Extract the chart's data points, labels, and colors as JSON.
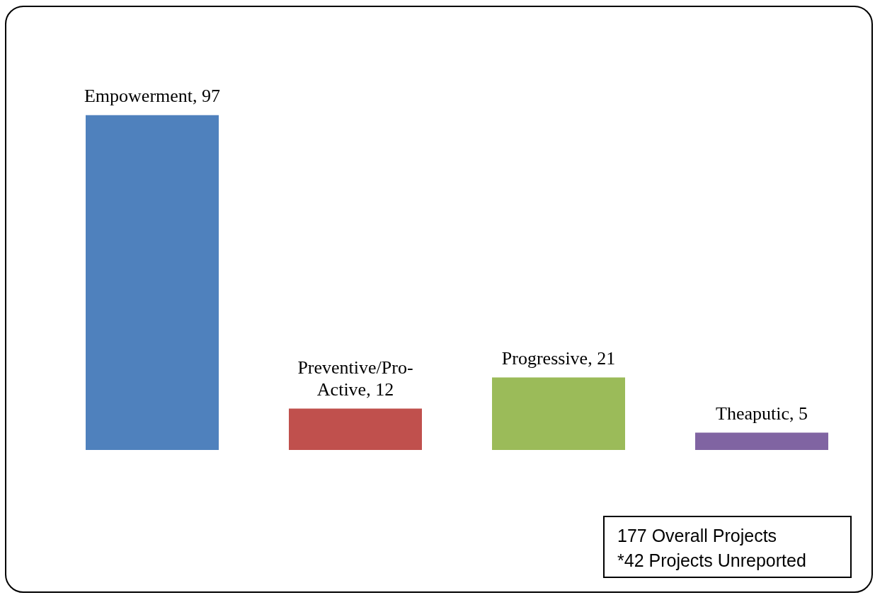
{
  "chart_data": {
    "type": "bar",
    "categories": [
      null,
      null,
      null,
      null
    ],
    "values": [
      97,
      12,
      21,
      5
    ],
    "value_labels": [
      "Empowerment, 97",
      "Preventive/Pro-Active, 12",
      "Progressive, 21",
      "Theaputic, 5"
    ],
    "colors": [
      "#4f81bd",
      "#c0504d",
      "#9bbb59",
      "#8064a2"
    ],
    "tick_labels": false,
    "annotations": [
      "177 Overall Projects",
      "*42 Projects Unreported"
    ]
  }
}
